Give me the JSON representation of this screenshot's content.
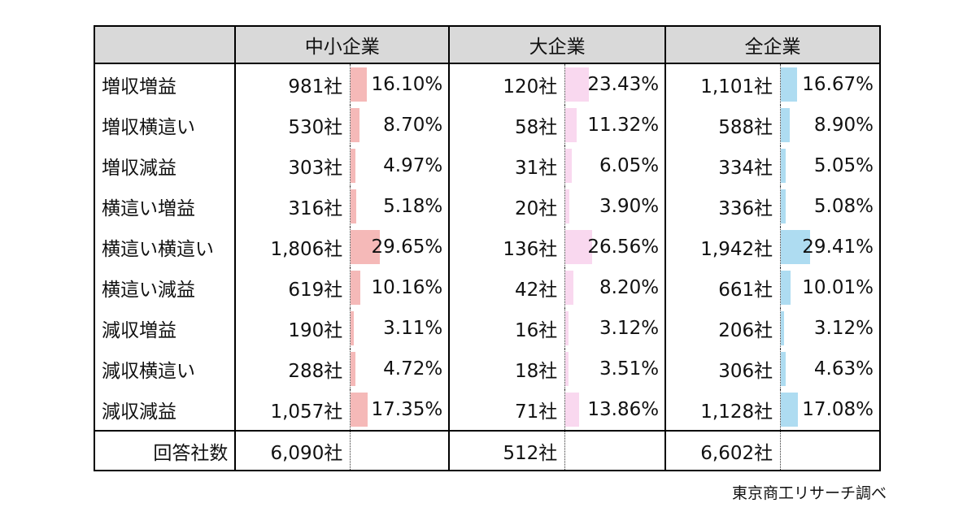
{
  "chart_data": {
    "type": "table",
    "title": "",
    "column_groups": [
      "中小企業",
      "大企業",
      "全企業"
    ],
    "categories": [
      "増収増益",
      "増収横這い",
      "増収減益",
      "横這い増益",
      "横這い横這い",
      "横這い減益",
      "減収増益",
      "減収横這い",
      "減収減益"
    ],
    "series": [
      {
        "name": "中小企業",
        "bar_color": "#f5b9b8",
        "counts": [
          981,
          530,
          303,
          316,
          1806,
          619,
          190,
          288,
          1057
        ],
        "percents": [
          16.1,
          8.7,
          4.97,
          5.18,
          29.65,
          10.16,
          3.11,
          4.72,
          17.35
        ],
        "total": 6090
      },
      {
        "name": "大企業",
        "bar_color": "#f9d8ef",
        "counts": [
          120,
          58,
          31,
          20,
          136,
          42,
          16,
          18,
          71
        ],
        "percents": [
          23.43,
          11.32,
          6.05,
          3.9,
          26.56,
          8.2,
          3.12,
          3.51,
          13.86
        ],
        "total": 512
      },
      {
        "name": "全企業",
        "bar_color": "#aedcf1",
        "counts": [
          1101,
          588,
          334,
          336,
          1942,
          661,
          206,
          306,
          1128
        ],
        "percents": [
          16.67,
          8.9,
          5.05,
          5.08,
          29.41,
          10.01,
          3.12,
          4.63,
          17.08
        ],
        "total": 6602
      }
    ],
    "total_row_label": "回答社数",
    "unit_suffix": "社",
    "percent_decimals": 2,
    "layout_hints": {
      "bar_style": "excel-data-bar",
      "bar_scale": "bar width = percent of full percent-cell width (100% scale)",
      "header_bg": "#d9d9d9",
      "border_color": "#000000",
      "grid": "no inner horizontal gridlines between data rows"
    }
  },
  "footer": {
    "source": "東京商工リサーチ調べ"
  }
}
